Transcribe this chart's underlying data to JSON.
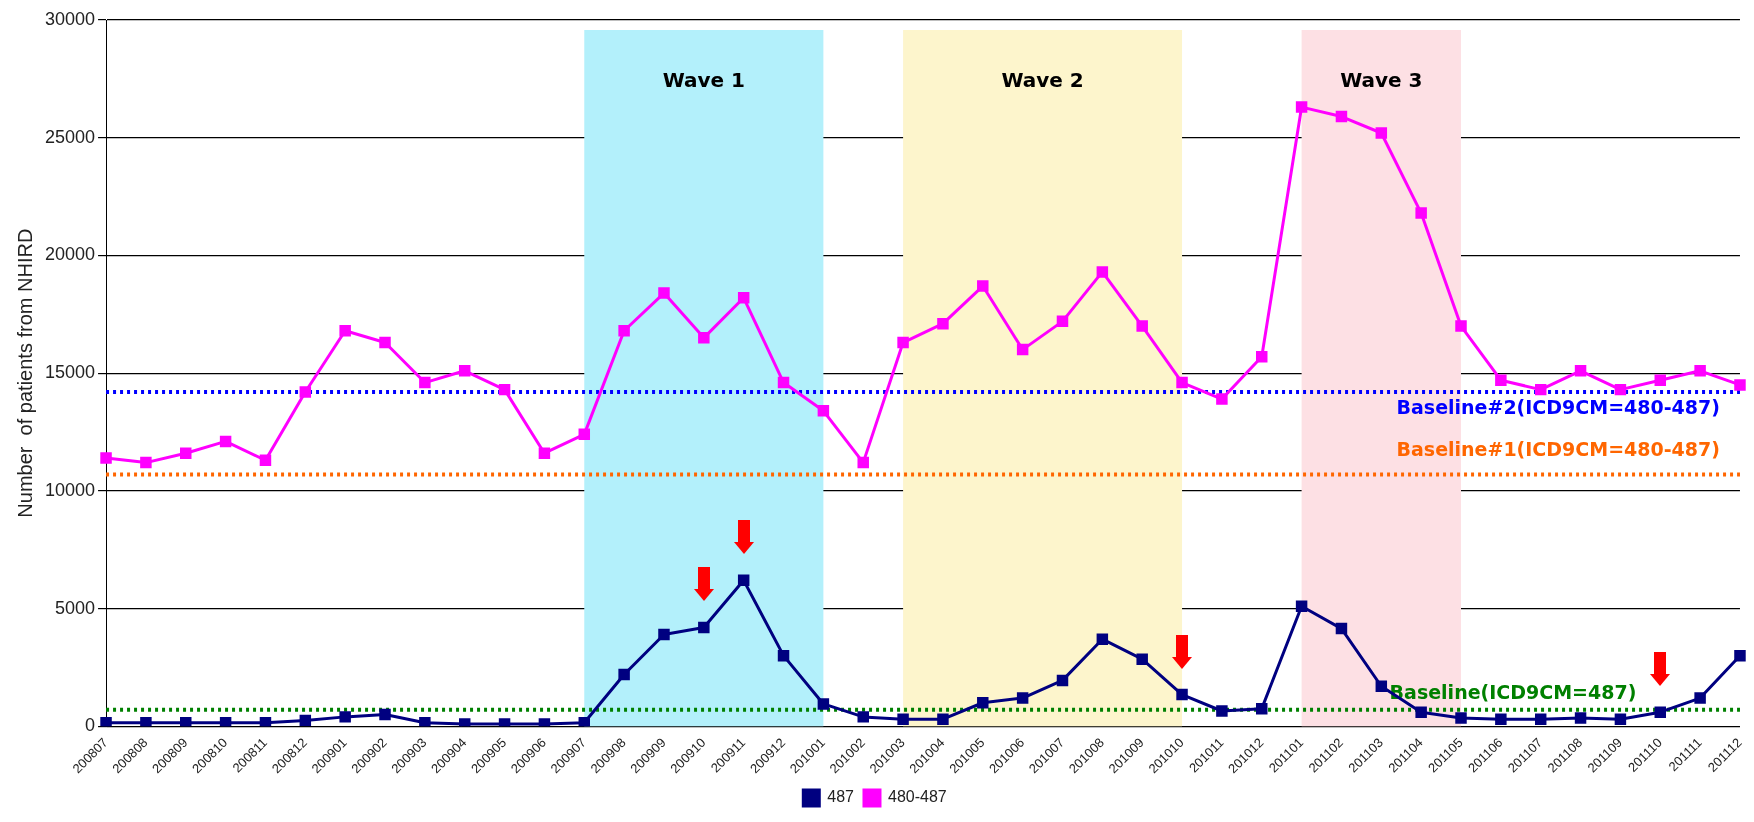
{
  "chart_data": {
    "type": "line",
    "ylabel": "Number  of patients from NHIRD",
    "categories": [
      "200807",
      "200808",
      "200809",
      "200810",
      "200811",
      "200812",
      "200901",
      "200902",
      "200903",
      "200904",
      "200905",
      "200906",
      "200907",
      "200908",
      "200909",
      "200910",
      "200911",
      "200912",
      "201001",
      "201002",
      "201003",
      "201004",
      "201005",
      "201006",
      "201007",
      "201008",
      "201009",
      "201010",
      "201011",
      "201012",
      "201101",
      "201102",
      "201103",
      "201104",
      "201105",
      "201106",
      "201107",
      "201108",
      "201109",
      "201110",
      "201111",
      "201112"
    ],
    "series": [
      {
        "name": "487",
        "color": "#000080",
        "values": [
          150,
          150,
          150,
          150,
          150,
          250,
          400,
          500,
          150,
          100,
          100,
          100,
          150,
          2200,
          3900,
          4200,
          6200,
          3000,
          950,
          400,
          300,
          300,
          1000,
          1200,
          1950,
          3700,
          2850,
          1350,
          650,
          750,
          5100,
          4150,
          1700,
          600,
          350,
          300,
          300,
          350,
          300,
          600,
          1200,
          3000
        ]
      },
      {
        "name": "480-487",
        "color": "#ff00ff",
        "values": [
          11400,
          11200,
          11600,
          12100,
          11300,
          14200,
          16800,
          16300,
          14600,
          15100,
          14300,
          11600,
          12400,
          16800,
          18400,
          16500,
          18200,
          14600,
          13400,
          11200,
          16300,
          17100,
          18700,
          16000,
          17200,
          19300,
          17000,
          14600,
          13900,
          15700,
          26300,
          25900,
          25200,
          21800,
          17000,
          14700,
          14300,
          15100,
          14300,
          14700,
          15100,
          14500
        ]
      }
    ],
    "ylim": [
      0,
      30000
    ],
    "yticks": [
      0,
      5000,
      10000,
      15000,
      20000,
      25000,
      30000
    ],
    "grid": "y",
    "marker": "square",
    "line_style": "solid",
    "legend": "bottom",
    "bands": [
      {
        "axis": "x",
        "from": "200907",
        "to": "201001",
        "label": "Wave 1",
        "color": "#b3f0fb"
      },
      {
        "axis": "x",
        "from": "201003",
        "to": "201010",
        "label": "Wave 2",
        "color": "#fdf5cc"
      },
      {
        "axis": "x",
        "from": "201101",
        "to": "201105",
        "label": "Wave 3",
        "color": "#fde0e4"
      }
    ],
    "ref_lines": [
      {
        "axis": "y",
        "value": 14200,
        "color": "#0000ff",
        "line_style": "dotted"
      },
      {
        "axis": "y",
        "value": 10700,
        "color": "#ff6600",
        "line_style": "dotted"
      },
      {
        "axis": "y",
        "value": 700,
        "color": "#008000",
        "line_style": "dotted"
      }
    ],
    "annotations": [
      "Baseline#2(ICD9CM=480-487)",
      "Baseline#1(ICD9CM=480-487)",
      "Baseline(ICD9CM=487)"
    ]
  }
}
